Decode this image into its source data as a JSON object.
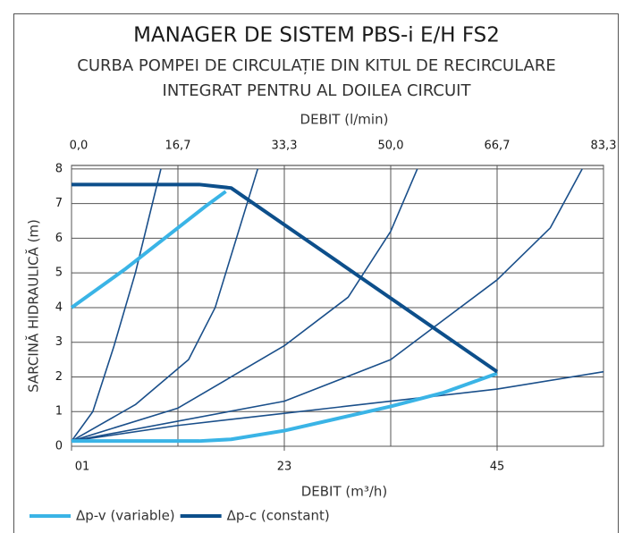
{
  "chart_data": {
    "type": "line",
    "title": "MANAGER DE SISTEM PBS-i E/H FS2",
    "subtitle": [
      "CURBA POMPEI DE CIRCULAȚIE DIN KITUL DE RECIRCULARE",
      "INTEGRAT PENTRU AL DOILEA CIRCUIT"
    ],
    "x2_label": "DEBIT  (l/min)",
    "x_label": "DEBIT (m³/h)",
    "y_label": "SARCINĂ HIDRAULICĂ (m)",
    "xlim": [
      0,
      5
    ],
    "ylim": [
      0,
      8.1
    ],
    "x2ticks": [
      {
        "value": 0,
        "label": "0,0"
      },
      {
        "value": 1,
        "label": "16,7"
      },
      {
        "value": 2,
        "label": "33,3"
      },
      {
        "value": 3,
        "label": "50,0"
      },
      {
        "value": 4,
        "label": "66,7"
      },
      {
        "value": 5,
        "label": "83,3"
      }
    ],
    "xticks": [
      {
        "value": 0,
        "label": "01"
      },
      {
        "value": 2,
        "label": "23"
      },
      {
        "value": 4,
        "label": "45"
      }
    ],
    "yticks": [
      0,
      1,
      2,
      3,
      4,
      5,
      6,
      7,
      8
    ],
    "grid": true,
    "legend": "bottom-left",
    "series": [
      {
        "color": "#1a4f8a",
        "x": [
          0,
          0.2,
          0.4,
          0.6,
          0.84
        ],
        "values": [
          0.15,
          1.0,
          2.9,
          5.0,
          8.0
        ]
      },
      {
        "color": "#1a4f8a",
        "x": [
          0,
          0.6,
          1.1,
          1.35,
          1.55,
          1.75
        ],
        "values": [
          0.15,
          1.2,
          2.5,
          4.0,
          6.0,
          8.0
        ]
      },
      {
        "color": "#1a4f8a",
        "x": [
          0,
          1.0,
          2.0,
          2.6,
          3.0,
          3.25
        ],
        "values": [
          0.15,
          1.1,
          2.9,
          4.3,
          6.2,
          8.0
        ]
      },
      {
        "color": "#1a4f8a",
        "x": [
          0,
          2.0,
          3.0,
          4.0,
          4.5,
          4.8
        ],
        "values": [
          0.15,
          1.3,
          2.5,
          4.8,
          6.3,
          8.0
        ]
      },
      {
        "color": "#1a4f8a",
        "x": [
          0,
          1.0,
          2.0,
          3.0,
          4.0,
          5.0
        ],
        "values": [
          0.15,
          0.6,
          0.95,
          1.3,
          1.65,
          2.15
        ]
      },
      {
        "name": "Δp-v (variable)",
        "color": "#3ab4e6",
        "x": [
          0,
          0.5,
          1.0,
          1.25,
          1.45,
          null,
          0,
          1.2,
          1.5,
          2.0,
          2.5,
          3.0,
          3.5,
          4.0
        ],
        "values": [
          4.0,
          5.1,
          6.3,
          6.9,
          7.35,
          null,
          0.15,
          0.15,
          0.2,
          0.45,
          0.8,
          1.15,
          1.55,
          2.1
        ]
      },
      {
        "name": "Δp-c (constant)",
        "color": "#0d4f8b",
        "x": [
          0,
          1.2,
          1.5,
          4.0
        ],
        "values": [
          7.55,
          7.55,
          7.45,
          2.15
        ]
      }
    ]
  }
}
